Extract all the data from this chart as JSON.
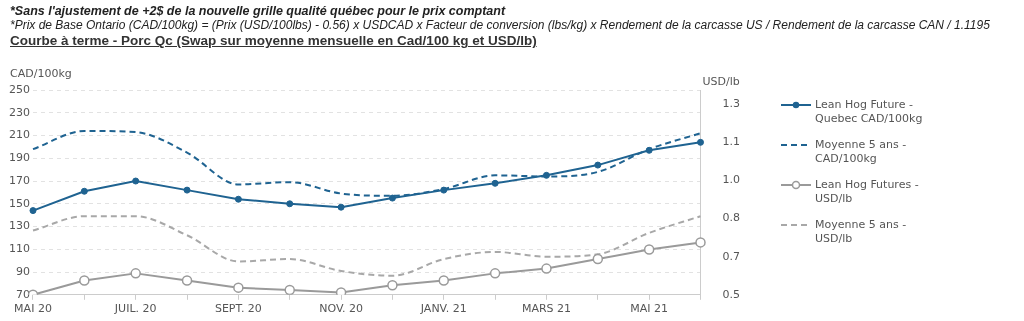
{
  "chart_data": {
    "type": "line",
    "title": "Courbe à terme - Porc Qc (Swap sur moyenne mensuelle en Cad/100 kg et USD/lb)",
    "annotations": [
      "*Sans l'ajustement de +2$ de la nouvelle grille qualité québec pour le prix comptant",
      "*Prix de Base Ontario (CAD/100kg) = (Prix (USD/100lbs) - 0.56) x USDCAD x Facteur de conversion (lbs/kg) x Rendement de la carcasse US / Rendement de la carcasse CAN / 1.1195"
    ],
    "ylabel": "CAD/100kg",
    "y2label": "USD/lb",
    "categories": [
      "MAI 20",
      null,
      "JUIL. 20",
      null,
      "SEPT. 20",
      null,
      "NOV. 20",
      null,
      "JANV. 21",
      null,
      "MARS 21",
      null,
      "MAI 21",
      null
    ],
    "series": [
      {
        "name": "Lean Hog Future - Quebec CAD/100kg",
        "color": "#1f6391",
        "marker": "circle",
        "line_style": "solid",
        "values": [
          144,
          161,
          170,
          162,
          154,
          150,
          147,
          155,
          162,
          168,
          175,
          184,
          197,
          204
        ]
      },
      {
        "name": "Moyenne 5 ans - CAD/100kg",
        "color": "#1f6391",
        "marker": "none",
        "line_style": "dashed",
        "values": [
          198,
          214,
          213,
          195,
          167,
          169,
          159,
          157,
          163,
          175,
          174,
          178,
          198,
          212
        ]
      },
      {
        "name": "Lean Hog Futures - USD/lb",
        "color": "#9a9a9a",
        "marker": "circle",
        "line_style": "solid",
        "axis": "y2",
        "values": [
          0.5,
          0.56,
          0.59,
          0.56,
          0.53,
          0.52,
          0.51,
          0.54,
          0.56,
          0.59,
          0.61,
          0.65,
          0.69,
          0.72
        ]
      },
      {
        "name": "Moyenne 5 ans - USD/lb",
        "color": "#a8a8a8",
        "marker": "none",
        "line_style": "dashed",
        "axis": "y2",
        "values": [
          0.77,
          0.83,
          0.83,
          0.75,
          0.64,
          0.65,
          0.6,
          0.58,
          0.65,
          0.68,
          0.66,
          0.67,
          0.76,
          0.83
        ]
      }
    ],
    "ylim": [
      70,
      250
    ],
    "yticks": [
      70,
      90,
      110,
      130,
      150,
      170,
      190,
      210,
      230,
      250
    ],
    "y2lim": [
      0.5,
      1.36
    ],
    "y2ticks": [
      {
        "value": 0.5,
        "label": "0.5"
      },
      {
        "value": 0.66,
        "label": "0.7"
      },
      {
        "value": 0.82,
        "label": "0.8"
      },
      {
        "value": 0.98,
        "label": "1.0"
      },
      {
        "value": 1.14,
        "label": "1.1"
      },
      {
        "value": 1.3,
        "label": "1.3"
      }
    ],
    "grid": "y",
    "legend": "right"
  }
}
